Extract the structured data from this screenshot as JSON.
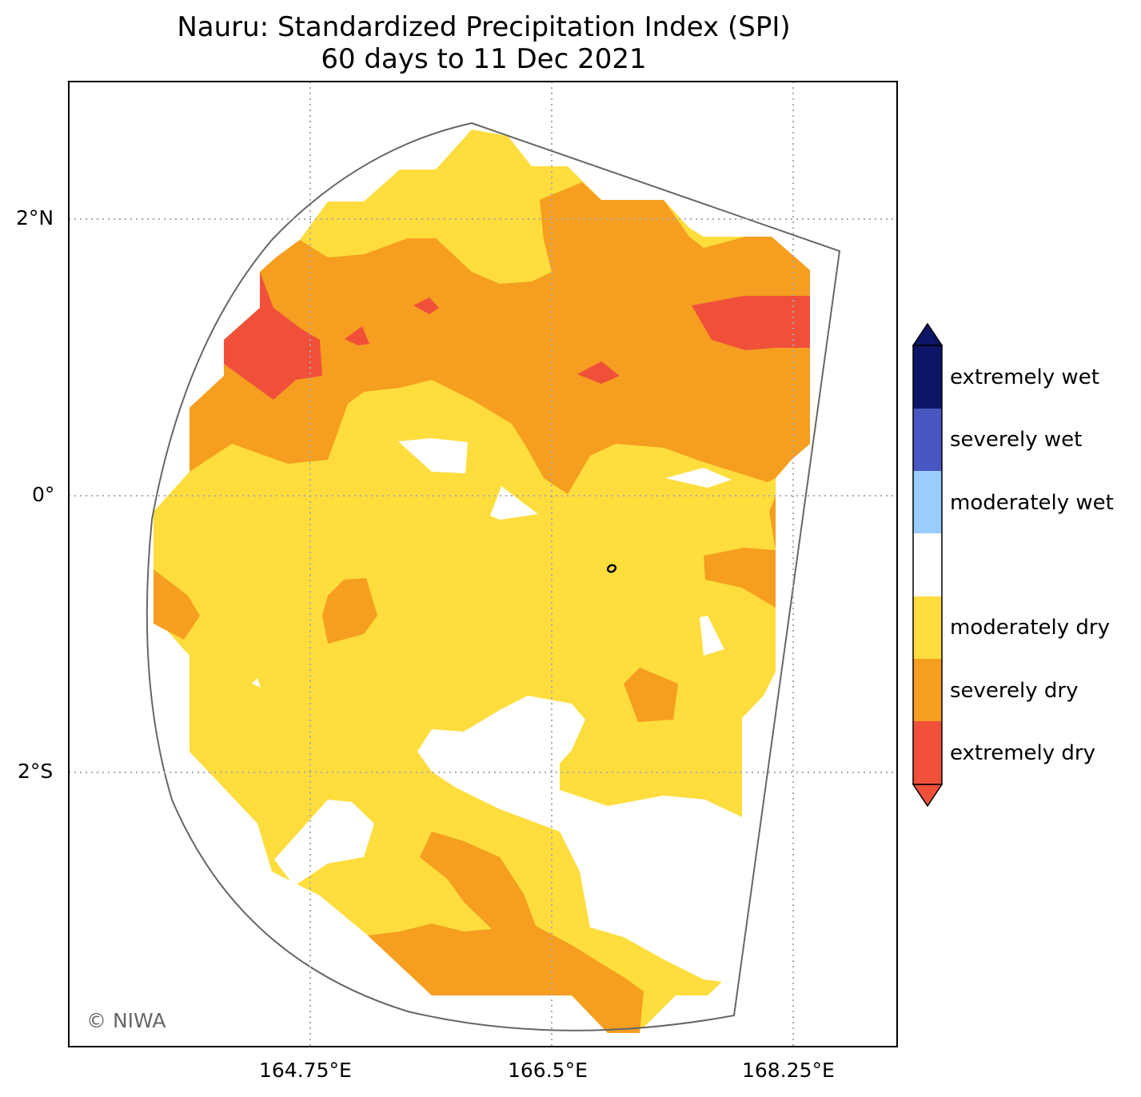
{
  "title": "Nauru: Standardized Precipitation Index (SPI)",
  "subtitle": "60 days to 11 Dec 2021",
  "credit": "© NIWA",
  "axes": {
    "lat_ticks": [
      "2°N",
      "0°",
      "2°S"
    ],
    "lon_ticks": [
      "164.75°E",
      "166.5°E",
      "168.25°E"
    ]
  },
  "legend": {
    "classes": [
      {
        "label": "extremely wet",
        "color": "#0c1566"
      },
      {
        "label": "severely wet",
        "color": "#4a57c2"
      },
      {
        "label": "moderately wet",
        "color": "#99ccff"
      },
      {
        "label": "",
        "color": "#ffffff"
      },
      {
        "label": "moderately dry",
        "color": "#fedd3d"
      },
      {
        "label": "severely dry",
        "color": "#f59e20"
      },
      {
        "label": "extremely dry",
        "color": "#f0503a"
      }
    ]
  },
  "colors": {
    "moderately_dry": "#fedd3d",
    "severely_dry": "#f59e20",
    "extremely_dry": "#f0503a",
    "boundary": "#666666",
    "grid": "#aaaaaa"
  }
}
